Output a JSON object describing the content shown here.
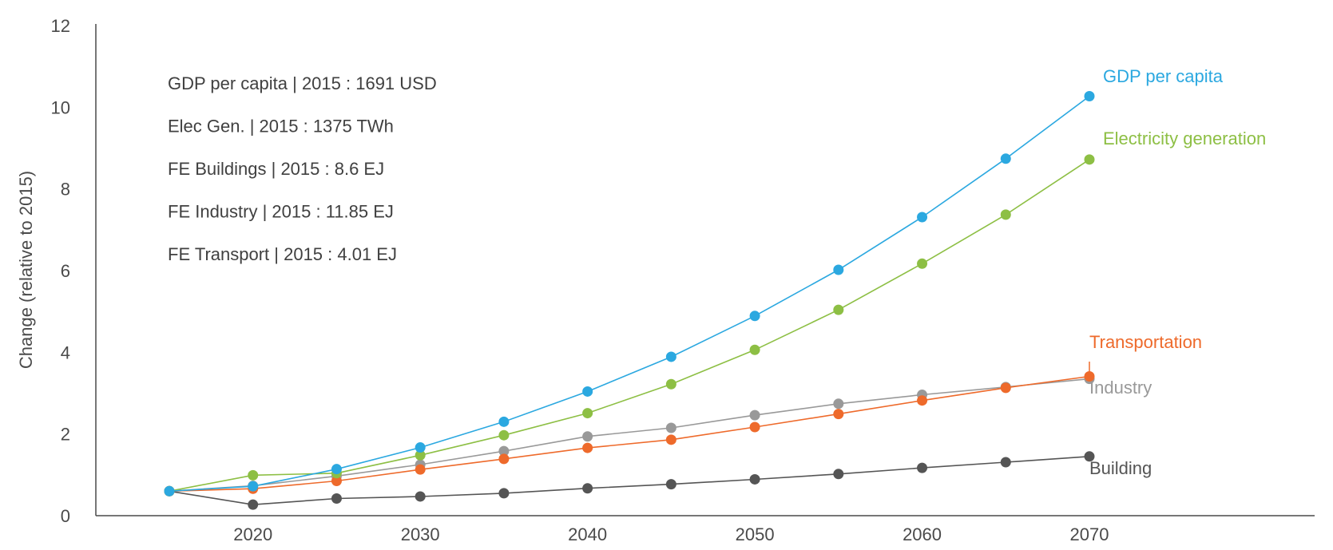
{
  "chart_data": {
    "type": "line",
    "ylabel": "Change (relative to 2015)",
    "xlabel": "",
    "title": "",
    "xlim": [
      2010,
      2083
    ],
    "ylim": [
      0,
      12
    ],
    "x_ticks": [
      2020,
      2030,
      2040,
      2050,
      2060,
      2070
    ],
    "y_ticks": [
      0,
      2,
      4,
      6,
      8,
      10,
      12
    ],
    "grid": false,
    "legend": "inline end-of-line labels",
    "notes": [
      "GDP per capita | 2015 : 1691 USD",
      "Elec Gen. | 2015 : 1375 TWh",
      "FE Buildings | 2015 : 8.6 EJ",
      "FE Industry | 2015 : 11.85 EJ",
      "FE Transport | 2015 : 4.01 EJ"
    ],
    "series": [
      {
        "name": "Building",
        "color": "#555555",
        "x": [
          2015,
          2020,
          2025,
          2030,
          2035,
          2040,
          2045,
          2050,
          2055,
          2060,
          2065,
          2070
        ],
        "values": [
          0.6,
          0.27,
          0.42,
          0.47,
          0.55,
          0.67,
          0.77,
          0.89,
          1.02,
          1.17,
          1.31,
          1.45
        ]
      },
      {
        "name": "Industry",
        "color": "#999999",
        "x": [
          2015,
          2020,
          2025,
          2030,
          2035,
          2040,
          2045,
          2050,
          2055,
          2060,
          2065,
          2070
        ],
        "values": [
          0.6,
          0.73,
          0.97,
          1.25,
          1.58,
          1.94,
          2.15,
          2.46,
          2.74,
          2.96,
          3.15,
          3.35
        ]
      },
      {
        "name": "Transportation",
        "color": "#EE6A2B",
        "x": [
          2015,
          2020,
          2025,
          2030,
          2035,
          2040,
          2045,
          2050,
          2055,
          2060,
          2065,
          2070
        ],
        "values": [
          0.6,
          0.66,
          0.85,
          1.13,
          1.39,
          1.66,
          1.86,
          2.17,
          2.49,
          2.82,
          3.13,
          3.41
        ]
      },
      {
        "name": "Electricity generation",
        "color": "#8DBF44",
        "x": [
          2015,
          2020,
          2025,
          2030,
          2035,
          2040,
          2045,
          2050,
          2055,
          2060,
          2065,
          2070
        ],
        "values": [
          0.6,
          0.99,
          1.04,
          1.48,
          1.97,
          2.51,
          3.22,
          4.06,
          5.04,
          6.17,
          7.37,
          8.72
        ]
      },
      {
        "name": "GDP per capita",
        "color": "#2BA8E0",
        "x": [
          2015,
          2020,
          2025,
          2030,
          2035,
          2040,
          2045,
          2050,
          2055,
          2060,
          2065,
          2070
        ],
        "values": [
          0.6,
          0.72,
          1.14,
          1.67,
          2.3,
          3.04,
          3.89,
          4.89,
          6.02,
          7.31,
          8.74,
          10.27
        ]
      }
    ],
    "series_labels": [
      {
        "name": "GDP per capita",
        "color": "#2BA8E0"
      },
      {
        "name": "Electricity generation",
        "color": "#8DBF44"
      },
      {
        "name": "Transportation",
        "color": "#EE6A2B"
      },
      {
        "name": "Industry",
        "color": "#999999"
      },
      {
        "name": "Building",
        "color": "#555555"
      }
    ],
    "axis_color": "#4a4a4a"
  }
}
